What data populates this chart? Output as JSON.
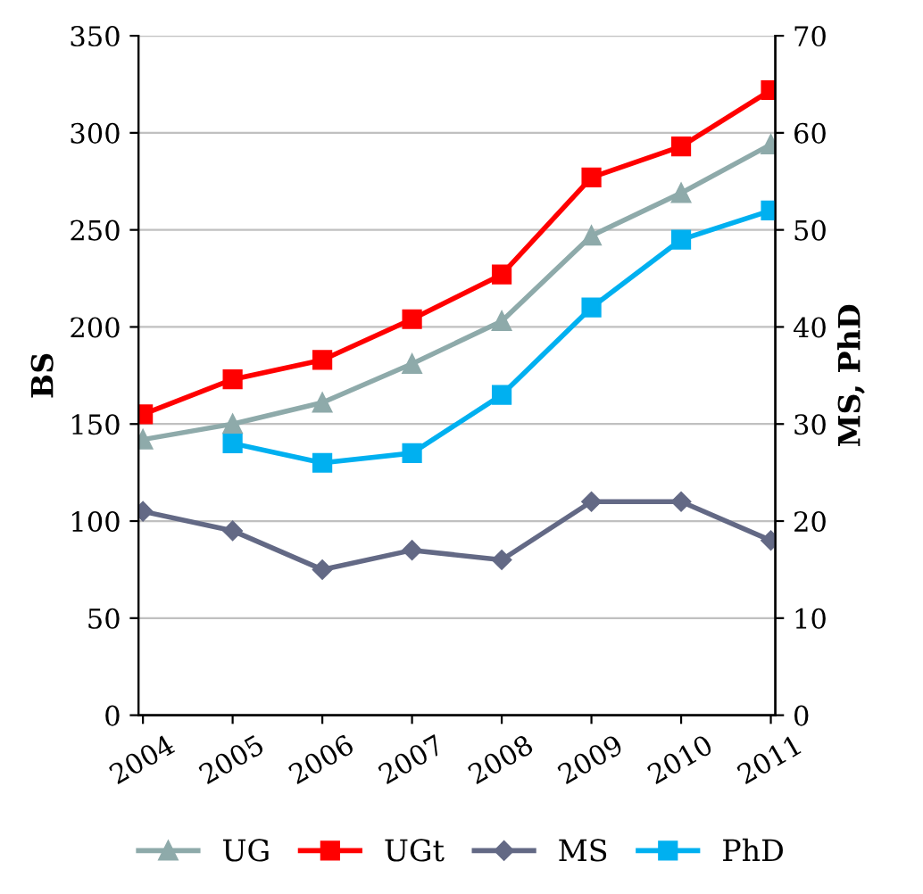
{
  "chart_data": {
    "type": "line",
    "ylabel": "BS",
    "y2label": "MS, PhD",
    "categories": [
      "2004",
      "2005",
      "2006",
      "2007",
      "2008",
      "2009",
      "2010",
      "2011"
    ],
    "series": [
      {
        "name": "UG",
        "color": "#8eaaaa",
        "marker": "triangle",
        "values": [
          142,
          150,
          161,
          181,
          203,
          247,
          269,
          294
        ]
      },
      {
        "name": "UGt",
        "color": "#ff0000",
        "marker": "square",
        "values": [
          155,
          173,
          183,
          204,
          227,
          277,
          293,
          322
        ]
      },
      {
        "name": "MS",
        "color": "#636985",
        "marker": "diamond",
        "axis": "y2",
        "values": [
          21,
          19,
          15,
          17,
          16,
          22,
          22,
          18
        ]
      },
      {
        "name": "PhD",
        "color": "#00b0f0",
        "marker": "square",
        "axis": "y2",
        "values": [
          null,
          28,
          26,
          27,
          33,
          42,
          49,
          52
        ]
      }
    ],
    "ylim": [
      0,
      350
    ],
    "yticks": [
      0,
      50,
      100,
      150,
      200,
      250,
      300,
      350
    ],
    "y2lim": [
      0,
      70
    ],
    "y2ticks": [
      0,
      10,
      20,
      30,
      40,
      50,
      60,
      70
    ],
    "grid": "y",
    "legend": "bottom"
  }
}
